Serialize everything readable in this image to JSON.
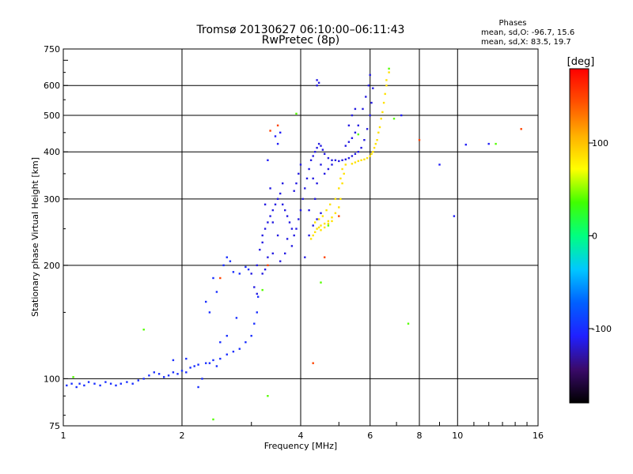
{
  "chart_data": {
    "type": "scatter",
    "title": "Tromsø 20130627 06:10:00–06:11:43",
    "subtitle": "RwPretec (8p)",
    "xlabel": "Frequency [MHz]",
    "ylabel": "Stationary phase Virtual Height [km]",
    "x_scale": "log",
    "y_scale": "log",
    "xlim": [
      1,
      16
    ],
    "ylim": [
      75,
      750
    ],
    "x_ticks": [
      1,
      2,
      4,
      6,
      8,
      10,
      16
    ],
    "x_tick_labels": [
      "1",
      "2",
      "4",
      "6",
      "8",
      "10",
      "16"
    ],
    "y_ticks": [
      75,
      100,
      200,
      300,
      400,
      500,
      600,
      750
    ],
    "y_tick_labels": [
      "75",
      "100",
      "200",
      "300",
      "400",
      "500",
      "600",
      "750"
    ],
    "grid": true,
    "phase_box": {
      "title": "Phases",
      "line1": "mean, sd,O: -96.7, 15.6",
      "line2": "mean, sd,X:  83.5, 19.7"
    },
    "colorbar": {
      "label": "[deg]",
      "range": [
        -180,
        180
      ],
      "tick_values": [
        100,
        0,
        -100
      ],
      "tick_labels": [
        "100",
        "0",
        "-100"
      ],
      "colors": [
        "#000000",
        "#3a0a6a",
        "#2020ff",
        "#0060ff",
        "#00c8ff",
        "#00ff80",
        "#40ff00",
        "#ffff00",
        "#ffb000",
        "#ff5000",
        "#ff0000"
      ]
    },
    "series": [
      {
        "phase": -100,
        "points": [
          [
            1.02,
            96
          ],
          [
            1.05,
            97
          ],
          [
            1.08,
            95
          ],
          [
            1.1,
            97
          ],
          [
            1.13,
            96
          ],
          [
            1.16,
            98
          ],
          [
            1.2,
            97
          ],
          [
            1.24,
            96
          ],
          [
            1.28,
            98
          ],
          [
            1.32,
            97
          ],
          [
            1.36,
            96
          ],
          [
            1.4,
            97
          ],
          [
            1.45,
            98
          ],
          [
            1.5,
            97
          ],
          [
            1.55,
            99
          ],
          [
            1.6,
            100
          ],
          [
            1.65,
            102
          ],
          [
            1.7,
            104
          ],
          [
            1.75,
            103
          ],
          [
            1.8,
            101
          ],
          [
            1.85,
            102
          ],
          [
            1.9,
            104
          ],
          [
            1.95,
            103
          ],
          [
            2.0,
            105
          ],
          [
            2.05,
            104
          ],
          [
            2.1,
            107
          ],
          [
            2.15,
            108
          ],
          [
            2.2,
            109
          ],
          [
            2.3,
            110
          ],
          [
            2.4,
            112
          ],
          [
            2.5,
            113
          ],
          [
            2.6,
            116
          ],
          [
            2.7,
            118
          ],
          [
            2.8,
            120
          ],
          [
            2.9,
            125
          ],
          [
            3.0,
            130
          ],
          [
            3.05,
            140
          ],
          [
            3.1,
            150
          ],
          [
            3.12,
            165
          ],
          [
            2.2,
            95
          ],
          [
            2.25,
            100
          ],
          [
            2.35,
            110
          ],
          [
            2.45,
            108
          ],
          [
            1.9,
            112
          ],
          [
            2.05,
            113
          ],
          [
            2.5,
            125
          ],
          [
            2.6,
            130
          ],
          [
            2.75,
            145
          ],
          [
            2.8,
            190
          ],
          [
            2.9,
            198
          ],
          [
            2.95,
            195
          ],
          [
            2.55,
            200
          ],
          [
            2.6,
            210
          ],
          [
            2.65,
            205
          ],
          [
            2.7,
            192
          ],
          [
            2.4,
            185
          ],
          [
            2.45,
            170
          ],
          [
            2.35,
            150
          ],
          [
            2.3,
            160
          ]
        ]
      },
      {
        "phase": -115,
        "points": [
          [
            3.1,
            200
          ],
          [
            3.15,
            220
          ],
          [
            3.2,
            240
          ],
          [
            3.25,
            250
          ],
          [
            3.3,
            260
          ],
          [
            3.35,
            270
          ],
          [
            3.4,
            280
          ],
          [
            3.45,
            290
          ],
          [
            3.5,
            300
          ],
          [
            3.55,
            310
          ],
          [
            3.6,
            290
          ],
          [
            3.65,
            280
          ],
          [
            3.7,
            270
          ],
          [
            3.75,
            260
          ],
          [
            3.8,
            250
          ],
          [
            3.85,
            240
          ],
          [
            3.9,
            250
          ],
          [
            3.95,
            265
          ],
          [
            4.0,
            280
          ],
          [
            4.05,
            300
          ],
          [
            4.1,
            320
          ],
          [
            4.15,
            340
          ],
          [
            4.2,
            360
          ],
          [
            4.25,
            380
          ],
          [
            4.3,
            390
          ],
          [
            4.35,
            400
          ],
          [
            4.4,
            410
          ],
          [
            4.45,
            420
          ],
          [
            4.5,
            415
          ],
          [
            4.55,
            405
          ],
          [
            4.6,
            395
          ],
          [
            4.7,
            385
          ],
          [
            4.8,
            380
          ],
          [
            4.9,
            380
          ],
          [
            5.0,
            378
          ],
          [
            5.1,
            380
          ],
          [
            5.2,
            382
          ],
          [
            5.3,
            385
          ],
          [
            5.4,
            390
          ],
          [
            5.5,
            395
          ],
          [
            5.6,
            400
          ],
          [
            5.7,
            410
          ],
          [
            5.8,
            430
          ],
          [
            5.9,
            460
          ],
          [
            6.0,
            500
          ],
          [
            6.05,
            540
          ],
          [
            6.1,
            590
          ],
          [
            6.0,
            640
          ],
          [
            5.95,
            600
          ],
          [
            5.85,
            560
          ],
          [
            5.75,
            520
          ],
          [
            5.6,
            470
          ],
          [
            5.5,
            450
          ],
          [
            5.4,
            435
          ],
          [
            5.3,
            425
          ],
          [
            5.2,
            415
          ],
          [
            4.4,
            600
          ],
          [
            4.45,
            610
          ],
          [
            4.4,
            620
          ],
          [
            3.2,
            230
          ],
          [
            3.25,
            290
          ],
          [
            3.35,
            320
          ],
          [
            3.4,
            260
          ],
          [
            3.5,
            240
          ],
          [
            3.6,
            330
          ],
          [
            3.7,
            235
          ],
          [
            3.8,
            225
          ],
          [
            3.3,
            210
          ],
          [
            3.25,
            195
          ],
          [
            3.2,
            190
          ],
          [
            3.4,
            215
          ],
          [
            3.55,
            205
          ],
          [
            3.65,
            215
          ],
          [
            4.1,
            210
          ],
          [
            4.2,
            280
          ],
          [
            4.3,
            340
          ],
          [
            4.35,
            300
          ],
          [
            4.4,
            330
          ],
          [
            4.5,
            370
          ],
          [
            4.6,
            350
          ],
          [
            4.7,
            360
          ],
          [
            4.8,
            370
          ],
          [
            5.3,
            470
          ],
          [
            5.4,
            500
          ],
          [
            5.5,
            520
          ],
          [
            4.0,
            370
          ],
          [
            3.95,
            350
          ],
          [
            3.9,
            330
          ],
          [
            3.85,
            315
          ],
          [
            3.0,
            190
          ],
          [
            3.05,
            175
          ],
          [
            3.1,
            168
          ],
          [
            4.2,
            240
          ],
          [
            4.3,
            255
          ],
          [
            4.4,
            265
          ],
          [
            4.5,
            275
          ]
        ]
      },
      {
        "phase": 85,
        "points": [
          [
            4.3,
            240
          ],
          [
            4.35,
            245
          ],
          [
            4.4,
            250
          ],
          [
            4.45,
            252
          ],
          [
            4.5,
            255
          ],
          [
            4.6,
            258
          ],
          [
            4.7,
            262
          ],
          [
            4.8,
            268
          ],
          [
            4.9,
            275
          ],
          [
            5.0,
            285
          ],
          [
            5.05,
            300
          ],
          [
            5.1,
            330
          ],
          [
            5.15,
            350
          ],
          [
            5.6,
            378
          ],
          [
            5.7,
            380
          ],
          [
            5.8,
            382
          ],
          [
            5.9,
            385
          ],
          [
            6.0,
            390
          ],
          [
            6.1,
            400
          ],
          [
            6.2,
            420
          ],
          [
            6.3,
            450
          ],
          [
            6.4,
            490
          ],
          [
            6.5,
            540
          ],
          [
            6.6,
            600
          ],
          [
            6.7,
            650
          ],
          [
            4.35,
            260
          ],
          [
            4.45,
            265
          ],
          [
            4.55,
            270
          ],
          [
            4.65,
            280
          ],
          [
            4.75,
            290
          ],
          [
            4.9,
            300
          ],
          [
            5.0,
            320
          ],
          [
            5.05,
            340
          ],
          [
            5.1,
            360
          ],
          [
            5.2,
            370
          ],
          [
            5.4,
            372
          ],
          [
            5.5,
            375
          ],
          [
            6.05,
            395
          ],
          [
            6.15,
            410
          ],
          [
            6.25,
            430
          ],
          [
            6.35,
            465
          ],
          [
            6.45,
            510
          ],
          [
            6.55,
            570
          ],
          [
            6.6,
            620
          ],
          [
            4.25,
            235
          ],
          [
            4.5,
            248
          ],
          [
            4.6,
            252
          ],
          [
            4.7,
            258
          ],
          [
            4.8,
            262
          ]
        ]
      },
      {
        "phase": 40,
        "points": [
          [
            1.06,
            101
          ],
          [
            1.6,
            135
          ],
          [
            3.2,
            172
          ],
          [
            4.7,
            255
          ],
          [
            5.6,
            445
          ],
          [
            6.9,
            490
          ],
          [
            7.5,
            140
          ],
          [
            3.3,
            90
          ],
          [
            4.5,
            180
          ],
          [
            2.4,
            78
          ],
          [
            12.5,
            420
          ],
          [
            6.7,
            665
          ],
          [
            3.9,
            505
          ]
        ]
      },
      {
        "phase": 150,
        "points": [
          [
            2.5,
            185
          ],
          [
            3.3,
            200
          ],
          [
            4.6,
            210
          ],
          [
            5.0,
            270
          ],
          [
            3.5,
            470
          ],
          [
            4.3,
            110
          ],
          [
            8.0,
            430
          ],
          [
            14.5,
            460
          ],
          [
            3.35,
            455
          ]
        ]
      },
      {
        "phase": -110,
        "points": [
          [
            9.8,
            270
          ],
          [
            9.0,
            370
          ],
          [
            12.0,
            420
          ],
          [
            10.5,
            418
          ],
          [
            7.2,
            500
          ],
          [
            3.3,
            380
          ],
          [
            3.5,
            420
          ],
          [
            3.45,
            440
          ],
          [
            3.55,
            450
          ]
        ]
      }
    ]
  }
}
